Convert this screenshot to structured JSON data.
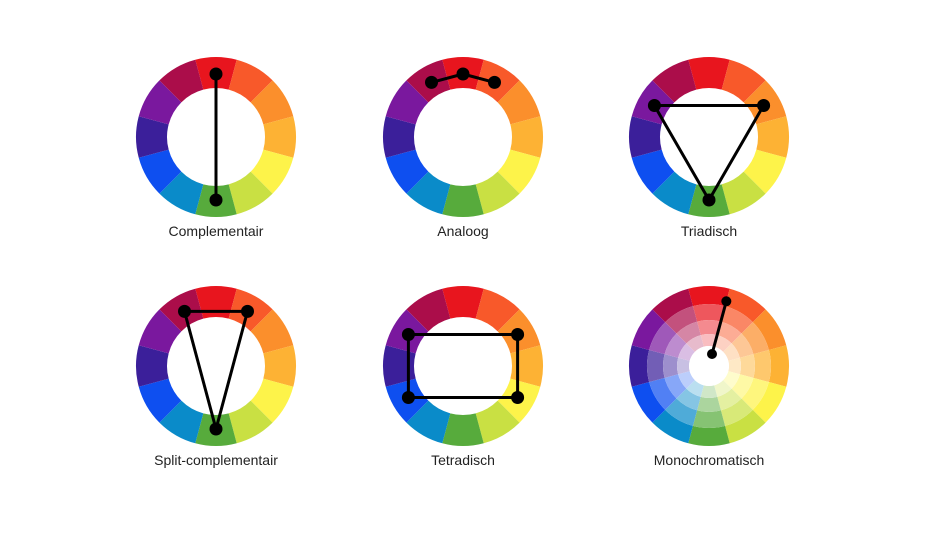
{
  "wheel_colors": [
    "#e8151e",
    "#f8592a",
    "#fb8f2c",
    "#fdb234",
    "#fdf34a",
    "#c9e043",
    "#57ab3c",
    "#0a8bc9",
    "#0e4ff0",
    "#3b1f9a",
    "#7a189e",
    "#ab0d4a"
  ],
  "line_color": "#000000",
  "schemes": [
    {
      "id": "complementair",
      "label": "Complementair",
      "dots": [
        0,
        6
      ],
      "shape": "segment"
    },
    {
      "id": "analoog",
      "label": "Analoog",
      "dots": [
        11,
        0,
        1
      ],
      "shape": "polyline"
    },
    {
      "id": "triadisch",
      "label": "Triadisch",
      "dots": [
        10,
        2,
        6
      ],
      "shape": "polygon"
    },
    {
      "id": "split-complementair",
      "label": "Split-complementair",
      "dots": [
        11,
        1,
        6
      ],
      "shape": "polygon"
    },
    {
      "id": "tetradisch",
      "label": "Tetradisch",
      "dots": [
        10,
        2,
        4,
        8
      ],
      "shape": "polygon"
    },
    {
      "id": "monochromatisch",
      "label": "Monochromatisch",
      "dots": [
        0
      ],
      "shape": "radius"
    }
  ]
}
